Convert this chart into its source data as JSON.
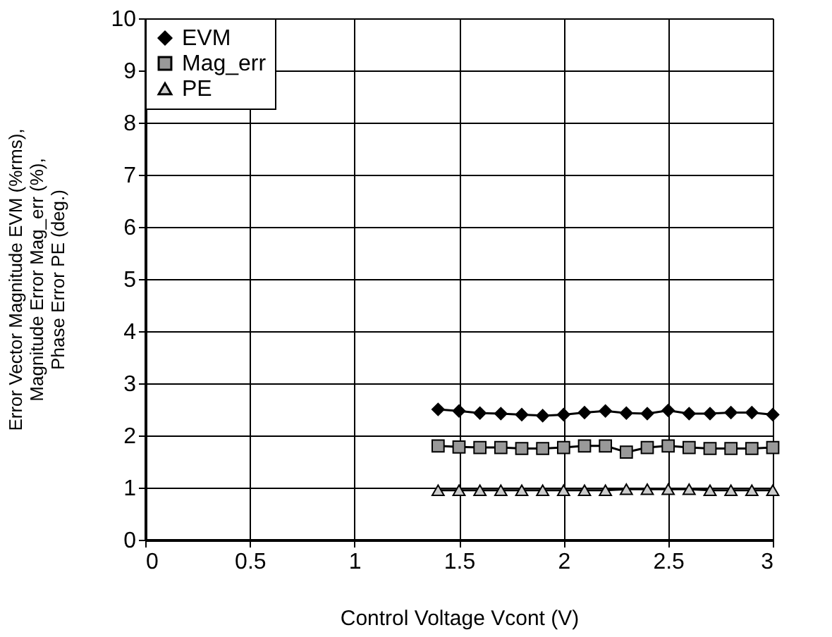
{
  "chart_data": {
    "type": "line",
    "xlabel": "Control Voltage  Vcont (V)",
    "ylabel": "Error Vector Magnitude  EVM (%rms),\nMagnitude Error  Mag_err (%),\nPhase Error  PE (deg.)",
    "x": [
      1.4,
      1.5,
      1.6,
      1.7,
      1.8,
      1.9,
      2.0,
      2.1,
      2.2,
      2.3,
      2.4,
      2.5,
      2.6,
      2.7,
      2.8,
      2.9,
      3.0
    ],
    "series": [
      {
        "name": "EVM",
        "color": "#000000",
        "marker": "diamond",
        "values": [
          2.5,
          2.47,
          2.43,
          2.42,
          2.4,
          2.38,
          2.4,
          2.44,
          2.47,
          2.43,
          2.42,
          2.48,
          2.42,
          2.42,
          2.44,
          2.44,
          2.4
        ]
      },
      {
        "name": "Mag_err",
        "color": "#999999",
        "marker": "square",
        "values": [
          1.8,
          1.78,
          1.77,
          1.77,
          1.75,
          1.75,
          1.77,
          1.8,
          1.8,
          1.68,
          1.77,
          1.8,
          1.77,
          1.75,
          1.75,
          1.75,
          1.77
        ]
      },
      {
        "name": "PE",
        "color": "#cccccc",
        "marker": "triangle",
        "values": [
          0.95,
          0.95,
          0.95,
          0.95,
          0.95,
          0.95,
          0.95,
          0.95,
          0.95,
          0.97,
          0.97,
          0.97,
          0.97,
          0.95,
          0.95,
          0.95,
          0.95
        ]
      }
    ],
    "xlim": [
      0,
      3
    ],
    "xticks": [
      0,
      0.5,
      1,
      1.5,
      2,
      2.5,
      3
    ],
    "ylim": [
      0,
      10
    ],
    "yticks": [
      0,
      1,
      2,
      3,
      4,
      5,
      6,
      7,
      8,
      9,
      10
    ],
    "grid": true,
    "legend": "top left",
    "line_style": "solid"
  }
}
